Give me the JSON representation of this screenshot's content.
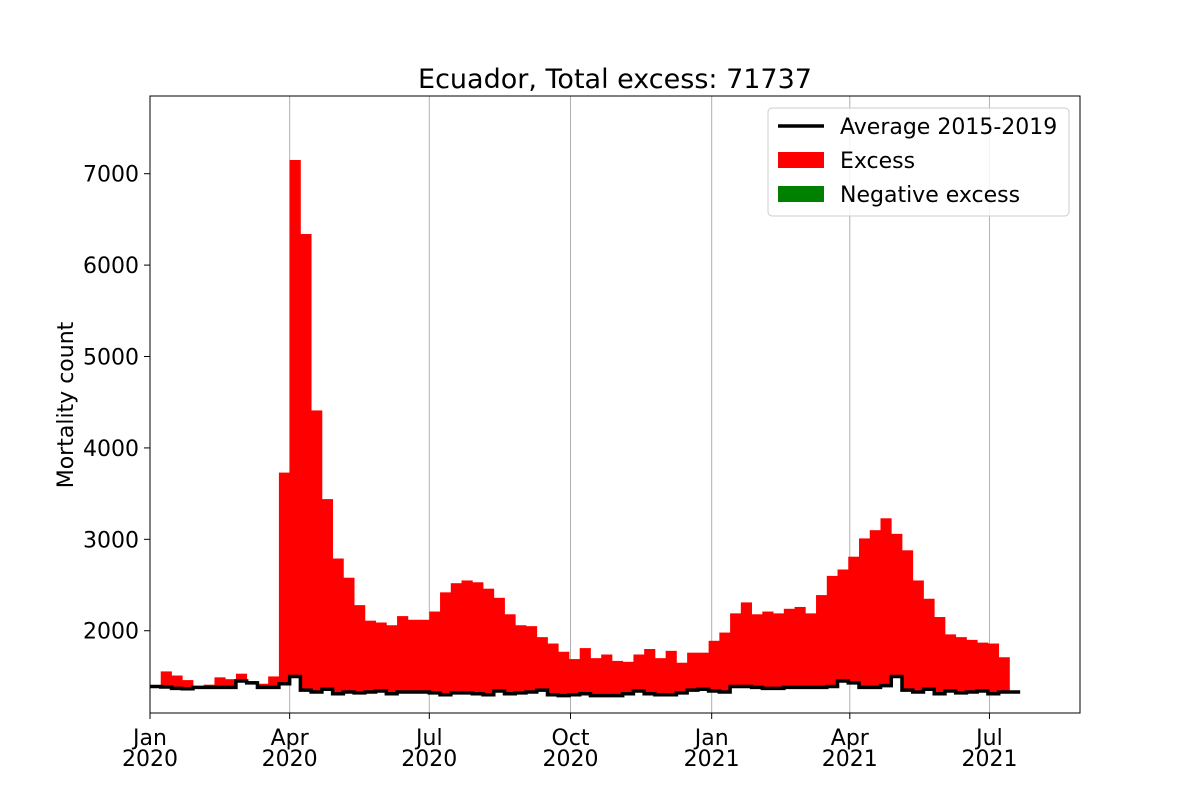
{
  "chart_data": {
    "type": "bar",
    "title": "Ecuador, Total excess: 71737",
    "xlabel": "",
    "ylabel": "Mortality count",
    "ylim": [
      1100,
      7850
    ],
    "xlim": [
      "2020-01-01",
      "2021-08-29"
    ],
    "grid": "vertical",
    "legend_position": "top-right",
    "colors": {
      "average": "#000000",
      "excess": "#ff0000",
      "negative_excess": "#008000"
    },
    "x_ticks": [
      {
        "date": "2020-01-01",
        "line1": "Jan",
        "line2": "2020"
      },
      {
        "date": "2020-04-01",
        "line1": "Apr",
        "line2": "2020"
      },
      {
        "date": "2020-07-01",
        "line1": "Jul",
        "line2": "2020"
      },
      {
        "date": "2020-10-01",
        "line1": "Oct",
        "line2": "2020"
      },
      {
        "date": "2021-01-01",
        "line1": "Jan",
        "line2": "2021"
      },
      {
        "date": "2021-04-01",
        "line1": "Apr",
        "line2": "2021"
      },
      {
        "date": "2021-07-01",
        "line1": "Jul",
        "line2": "2021"
      }
    ],
    "y_ticks": [
      2000,
      3000,
      4000,
      5000,
      6000,
      7000
    ],
    "series": [
      {
        "name": "Average 2015-2019",
        "kind": "step-line",
        "values": [
          1390,
          1385,
          1370,
          1365,
          1380,
          1380,
          1380,
          1380,
          1450,
          1430,
          1380,
          1380,
          1420,
          1500,
          1350,
          1330,
          1360,
          1310,
          1330,
          1320,
          1330,
          1340,
          1310,
          1330,
          1330,
          1330,
          1320,
          1300,
          1320,
          1320,
          1310,
          1300,
          1340,
          1310,
          1320,
          1330,
          1350,
          1300,
          1290,
          1300,
          1310,
          1290,
          1290,
          1290,
          1310,
          1340,
          1310,
          1300,
          1300,
          1320,
          1350,
          1360,
          1340,
          1330,
          1390,
          1390,
          1380,
          1370,
          1370,
          1380,
          1380,
          1380,
          1380,
          1390,
          1450,
          1430,
          1380,
          1380,
          1400,
          1500,
          1350,
          1330,
          1360,
          1310,
          1340,
          1320,
          1330,
          1340,
          1310,
          1330,
          1330
        ]
      },
      {
        "name": "Excess",
        "kind": "bar-top",
        "values": [
          1380,
          1555,
          1510,
          1460,
          1370,
          1410,
          1490,
          1470,
          1530,
          1450,
          1420,
          1500,
          3730,
          7150,
          6340,
          4410,
          3440,
          2790,
          2580,
          2280,
          2110,
          2090,
          2060,
          2160,
          2120,
          2120,
          2210,
          2420,
          2520,
          2550,
          2530,
          2460,
          2360,
          2180,
          2060,
          2050,
          1930,
          1860,
          1770,
          1690,
          1810,
          1700,
          1740,
          1670,
          1660,
          1740,
          1800,
          1700,
          1780,
          1650,
          1760,
          1760,
          1890,
          1980,
          2190,
          2310,
          2180,
          2210,
          2190,
          2240,
          2260,
          2190,
          2390,
          2600,
          2670,
          2810,
          3010,
          3100,
          3230,
          3060,
          2880,
          2550,
          2350,
          2150,
          1960,
          1930,
          1900,
          1870,
          1860,
          1710
        ]
      },
      {
        "name": "Negative excess",
        "kind": "bar",
        "values": []
      }
    ],
    "weeks_start": "2020-01-01",
    "week_count": 80
  }
}
